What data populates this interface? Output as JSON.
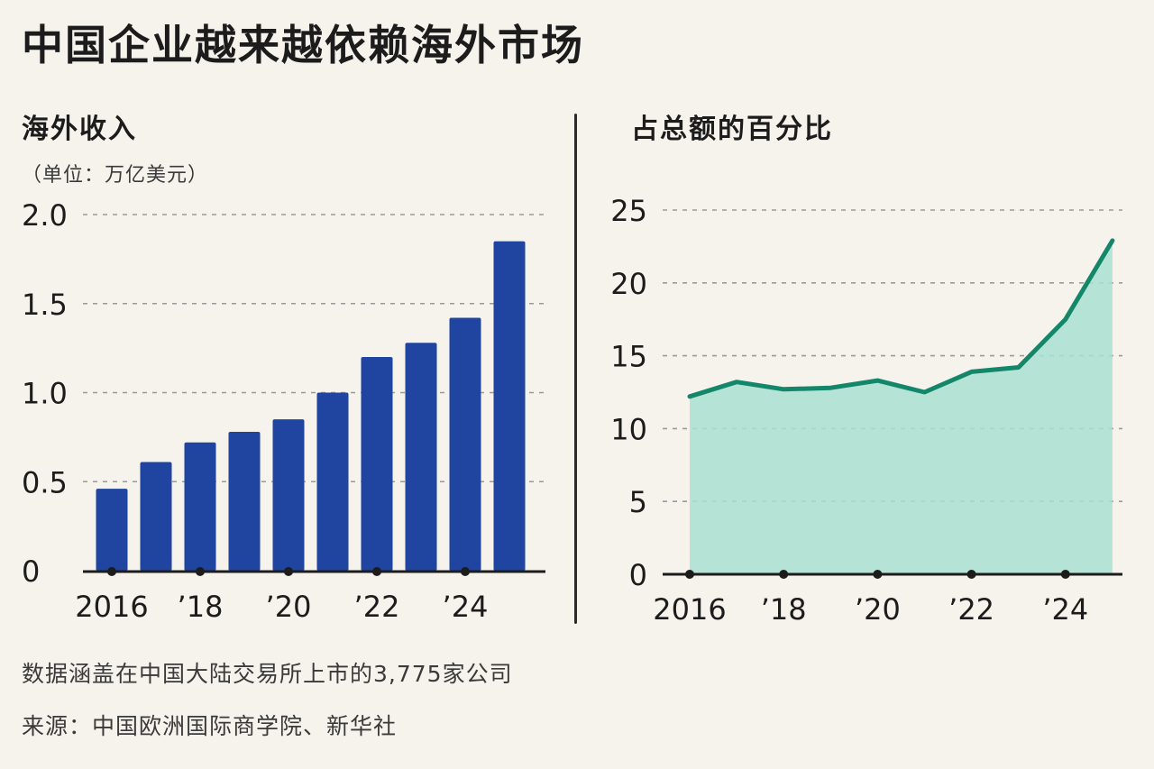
{
  "title": "中国企业越来越依赖海外市场",
  "left_panel": {
    "title": "海外收入",
    "unit": "（单位：万亿美元）"
  },
  "right_panel": {
    "title": "占总额的百分比"
  },
  "footer": {
    "note": "数据涵盖在中国大陆交易所上市的3,775家公司",
    "source": "来源：中国欧洲国际商学院、新华社"
  },
  "colors": {
    "bar": "#1f45a0",
    "line": "#14876a",
    "area": "#a9e0d2",
    "grid": "#9a9a9a"
  },
  "chart_data": [
    {
      "type": "bar",
      "title": "海外收入",
      "ylabel": "（单位：万亿美元）",
      "x": [
        2016,
        2017,
        2018,
        2019,
        2020,
        2021,
        2022,
        2023,
        2024,
        2025
      ],
      "values": [
        0.46,
        0.61,
        0.72,
        0.78,
        0.85,
        1.0,
        1.2,
        1.28,
        1.42,
        1.85
      ],
      "x_tick_labels": [
        "2016",
        "’18",
        "’20",
        "’22",
        "’24"
      ],
      "x_tick_values": [
        2016,
        2018,
        2020,
        2022,
        2024
      ],
      "y_tick_labels": [
        "0",
        "0.5",
        "1.0",
        "1.5",
        "2.0"
      ],
      "y_tick_values": [
        0,
        0.5,
        1.0,
        1.5,
        2.0
      ],
      "ylim": [
        0,
        2.0
      ],
      "grid": true
    },
    {
      "type": "area",
      "title": "占总额的百分比",
      "x": [
        2016,
        2017,
        2018,
        2019,
        2020,
        2021,
        2022,
        2023,
        2024,
        2025
      ],
      "values": [
        12.2,
        13.2,
        12.7,
        12.8,
        13.3,
        12.5,
        13.9,
        14.2,
        17.5,
        22.9
      ],
      "x_tick_labels": [
        "2016",
        "’18",
        "’20",
        "’22",
        "’24"
      ],
      "x_tick_values": [
        2016,
        2018,
        2020,
        2022,
        2024
      ],
      "y_tick_labels": [
        "0",
        "5",
        "10",
        "15",
        "20",
        "25"
      ],
      "y_tick_values": [
        0,
        5,
        10,
        15,
        20,
        25
      ],
      "ylim": [
        0,
        25
      ],
      "grid": true
    }
  ]
}
